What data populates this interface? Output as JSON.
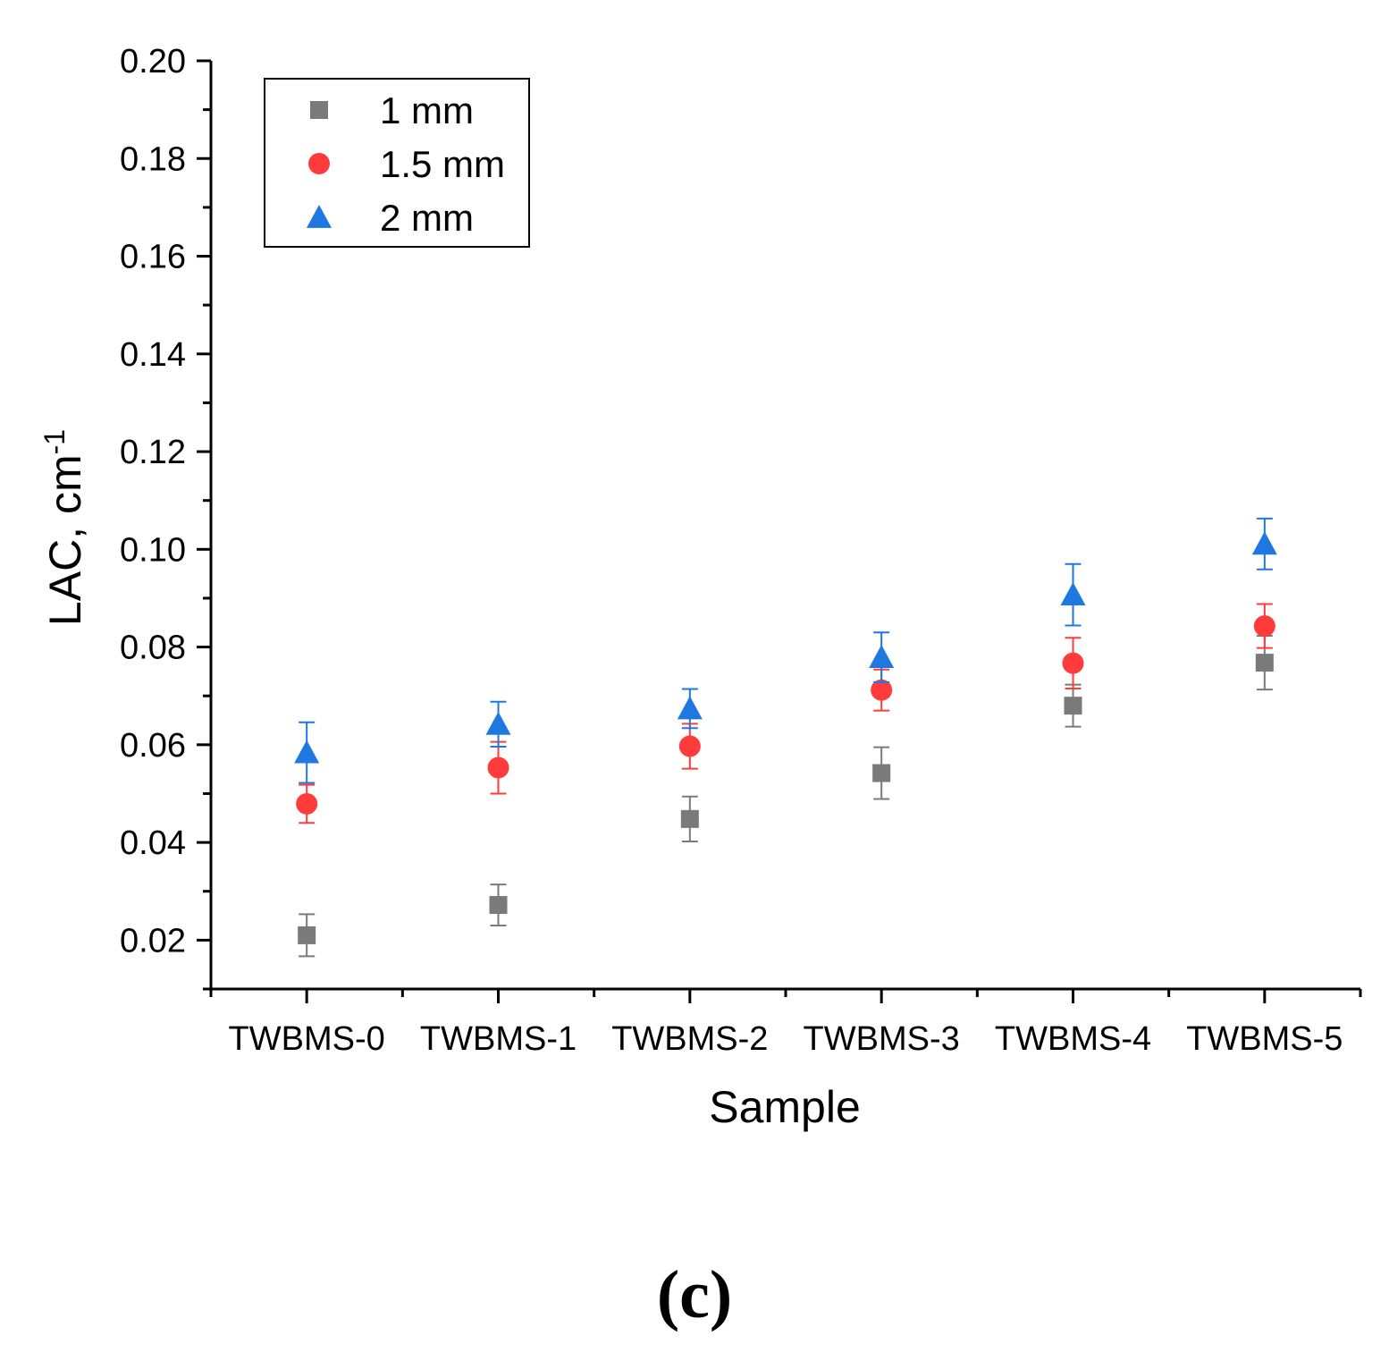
{
  "figure_label": "(c)",
  "chart_data": {
    "type": "scatter",
    "title": "",
    "xlabel": "Sample",
    "ylabel": "LAC, cm",
    "ylabel_superscript": "-1",
    "categories": [
      "TWBMS-0",
      "TWBMS-1",
      "TWBMS-2",
      "TWBMS-3",
      "TWBMS-4",
      "TWBMS-5"
    ],
    "ylim": [
      0.01,
      0.2
    ],
    "yticks": [
      "0.02",
      "0.04",
      "0.06",
      "0.08",
      "0.10",
      "0.12",
      "0.14",
      "0.16",
      "0.18",
      "0.20"
    ],
    "ytick_values": [
      0.02,
      0.04,
      0.06,
      0.08,
      0.1,
      0.12,
      0.14,
      0.16,
      0.18,
      0.2
    ],
    "grid": false,
    "legend_position": "top-left",
    "series": [
      {
        "name": "1 mm",
        "marker": "square",
        "color": "#7a7a7a",
        "values": [
          0.021,
          0.0272,
          0.0448,
          0.0542,
          0.068,
          0.0768
        ],
        "errors": [
          0.0043,
          0.0042,
          0.0046,
          0.0053,
          0.0043,
          0.0055
        ]
      },
      {
        "name": "1.5 mm",
        "marker": "circle",
        "color": "#ff3b3b",
        "values": [
          0.0479,
          0.0553,
          0.0597,
          0.0712,
          0.0767,
          0.0843
        ],
        "errors": [
          0.0039,
          0.0053,
          0.0046,
          0.0042,
          0.0052,
          0.0045
        ]
      },
      {
        "name": "2 mm",
        "marker": "triangle",
        "color": "#1f78e0",
        "values": [
          0.0584,
          0.0642,
          0.0674,
          0.0779,
          0.0907,
          0.1011
        ],
        "errors": [
          0.0062,
          0.0046,
          0.004,
          0.0051,
          0.0063,
          0.0052
        ]
      }
    ]
  }
}
